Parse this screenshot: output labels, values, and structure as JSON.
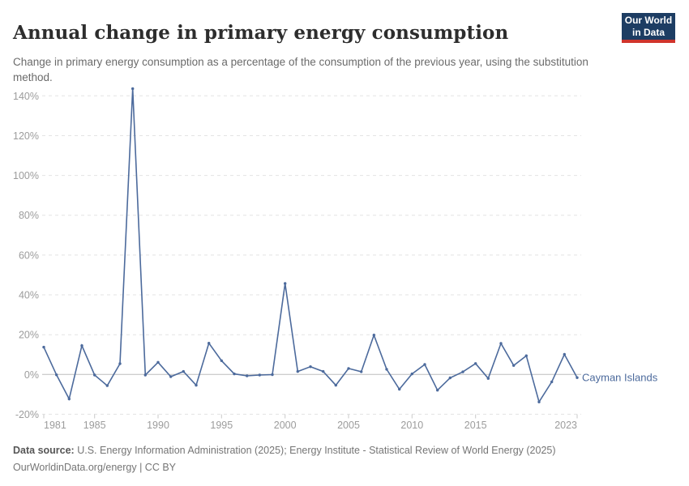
{
  "header": {
    "title": "Annual change in primary energy consumption",
    "subtitle": "Change in primary energy consumption as a percentage of the consumption of the previous year, using the substitution method.",
    "logo": {
      "line1": "Our World",
      "line2": "in Data"
    }
  },
  "footer": {
    "datasource_label": "Data source:",
    "datasource_text": " U.S. Energy Information Administration (2025); Energy Institute - Statistical Review of World Energy (2025)",
    "license_line": "OurWorldinData.org/energy | CC BY"
  },
  "chart_data": {
    "type": "line",
    "title": "Annual change in primary energy consumption",
    "entity": "Cayman Islands",
    "unit": "%",
    "color": "#4c6a9c",
    "x_range": [
      1981,
      2023
    ],
    "ylim": [
      -20,
      145
    ],
    "grid": true,
    "x_ticks": [
      1981,
      1985,
      1990,
      1995,
      2000,
      2005,
      2010,
      2015,
      2023
    ],
    "y_ticks": [
      -20,
      0,
      20,
      40,
      60,
      80,
      100,
      120,
      140
    ],
    "years": [
      1981,
      1982,
      1983,
      1984,
      1985,
      1986,
      1987,
      1988,
      1989,
      1990,
      1991,
      1992,
      1993,
      1994,
      1995,
      1996,
      1997,
      1998,
      1999,
      2000,
      2001,
      2002,
      2003,
      2004,
      2005,
      2006,
      2007,
      2008,
      2009,
      2010,
      2011,
      2012,
      2013,
      2014,
      2015,
      2016,
      2017,
      2018,
      2019,
      2020,
      2021,
      2022,
      2023
    ],
    "values": [
      13.7,
      -0.2,
      -12.3,
      14.5,
      -0.3,
      -5.6,
      5.4,
      143.6,
      -0.3,
      6.1,
      -1.1,
      1.5,
      -5.4,
      15.7,
      6.9,
      0.3,
      -0.7,
      -0.3,
      -0.1,
      45.7,
      1.5,
      3.9,
      1.5,
      -5.4,
      3.0,
      1.4,
      19.8,
      2.6,
      -7.4,
      0.3,
      5.0,
      -7.9,
      -1.7,
      1.3,
      5.5,
      -2.0,
      15.6,
      4.5,
      9.4,
      -13.8,
      -3.7,
      10.1,
      -1.6
    ]
  }
}
